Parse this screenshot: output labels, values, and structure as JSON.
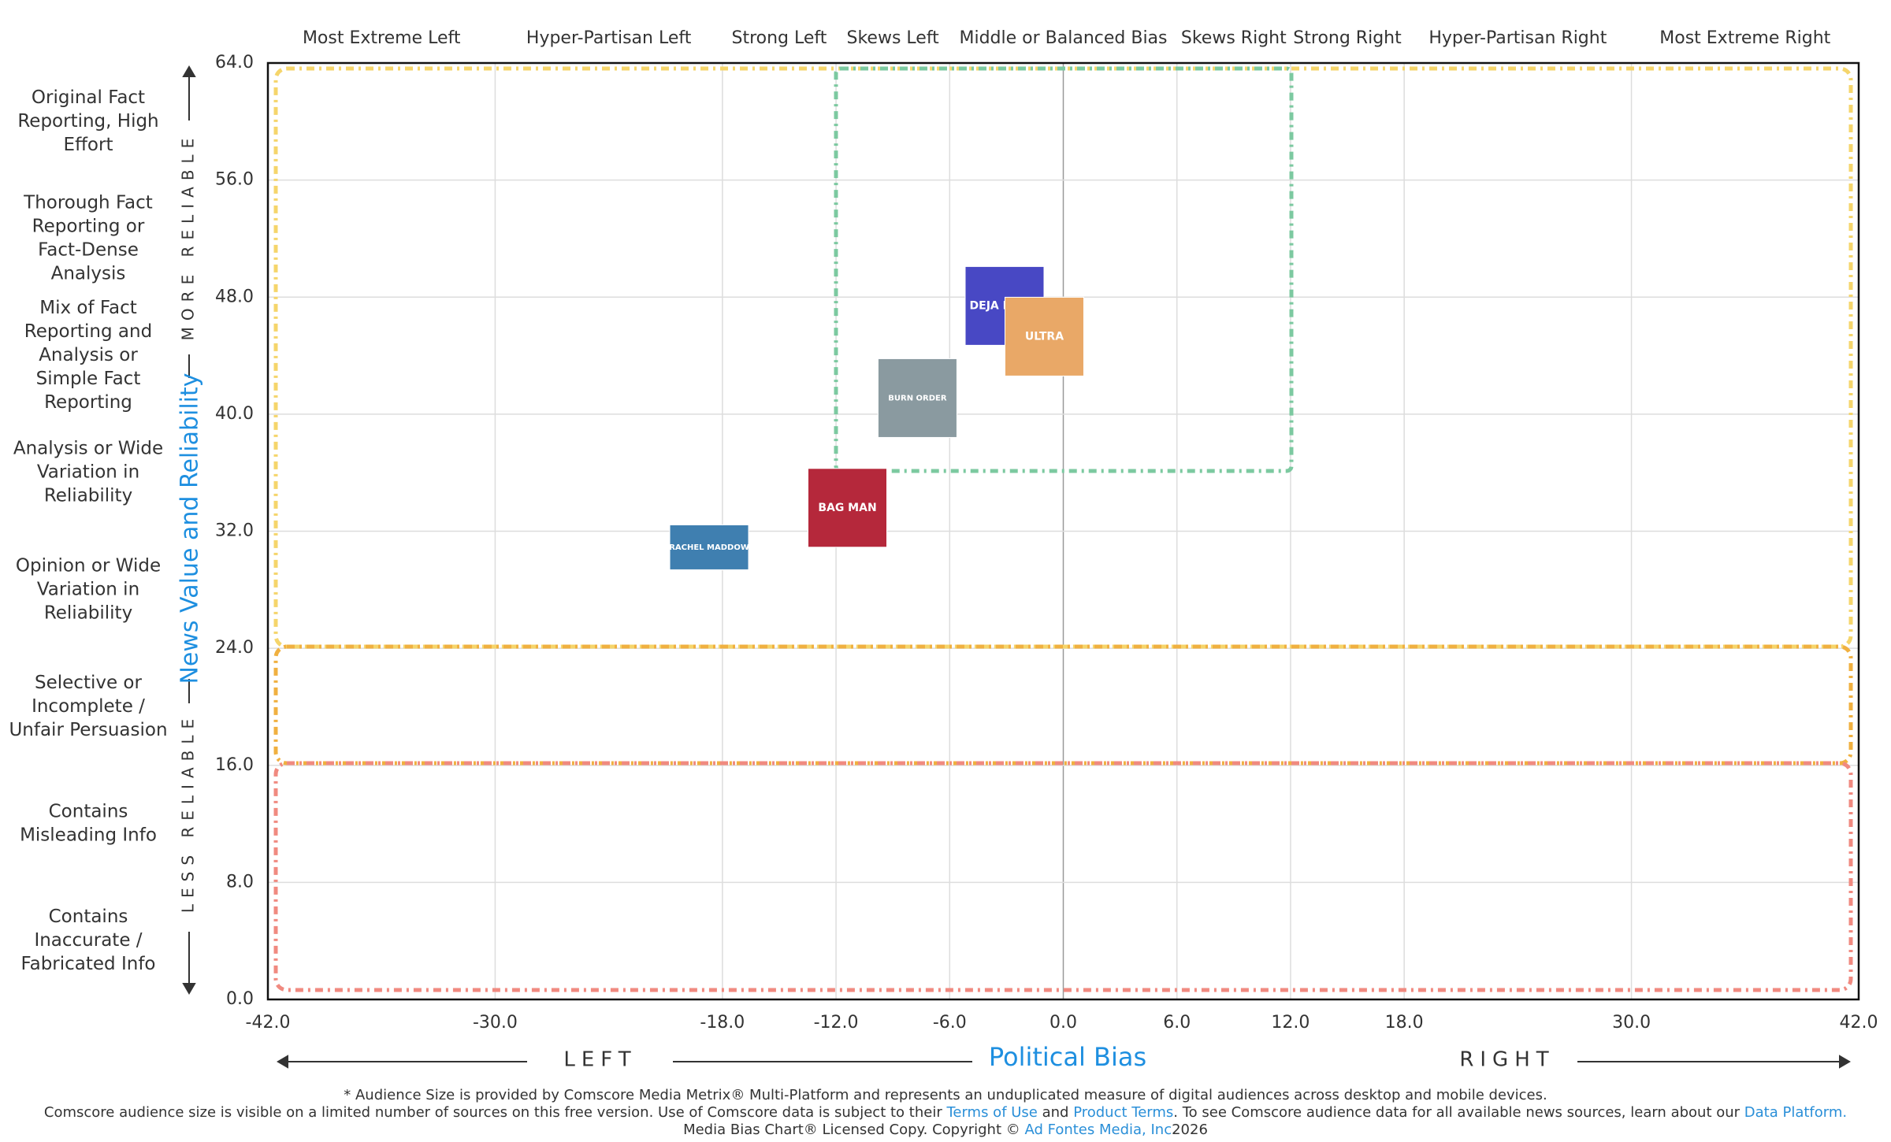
{
  "chart_data": {
    "type": "scatter",
    "x_label": "Political Bias",
    "y_label": "News Value and Reliability",
    "xlim": [
      -42,
      42
    ],
    "ylim": [
      0,
      64
    ],
    "xticks": [
      {
        "value": -42,
        "label": "-42.0"
      },
      {
        "value": -30,
        "label": "-30.0"
      },
      {
        "value": -18,
        "label": "-18.0"
      },
      {
        "value": -12,
        "label": "-12.0"
      },
      {
        "value": -6,
        "label": "-6.0"
      },
      {
        "value": 0,
        "label": "0.0"
      },
      {
        "value": 6,
        "label": "6.0"
      },
      {
        "value": 12,
        "label": "12.0"
      },
      {
        "value": 18,
        "label": "18.0"
      },
      {
        "value": 30,
        "label": "30.0"
      },
      {
        "value": 42,
        "label": "42.0"
      }
    ],
    "yticks": [
      {
        "value": 0,
        "label": "0.0"
      },
      {
        "value": 8,
        "label": "8.0"
      },
      {
        "value": 16,
        "label": "16.0"
      },
      {
        "value": 24,
        "label": "24.0"
      },
      {
        "value": 32,
        "label": "32.0"
      },
      {
        "value": 40,
        "label": "40.0"
      },
      {
        "value": 48,
        "label": "48.0"
      },
      {
        "value": 56,
        "label": "56.0"
      },
      {
        "value": 64,
        "label": "64.0"
      }
    ],
    "grid": true,
    "top_labels": [
      "Most Extreme Left",
      "Hyper-Partisan Left",
      "Strong Left",
      "Skews Left",
      "Middle or Balanced Bias",
      "Skews Right",
      "Strong Right",
      "Hyper-Partisan Right",
      "Most Extreme Right"
    ],
    "row_labels": [
      [
        "Original Fact",
        "Reporting, High",
        "Effort"
      ],
      [
        "Thorough Fact",
        "Reporting or",
        "Fact-Dense",
        "Analysis"
      ],
      [
        "Mix of Fact",
        "Reporting and",
        "Analysis or",
        "Simple Fact",
        "Reporting"
      ],
      [
        "Analysis or Wide",
        "Variation in",
        "Reliability"
      ],
      [
        "Opinion or Wide",
        "Variation in",
        "Reliability"
      ],
      [
        "Selective or",
        "Incomplete /",
        "Unfair Persuasion"
      ],
      [
        "Contains",
        "Misleading Info"
      ],
      [
        "Contains",
        "Inaccurate /",
        "Fabricated Info"
      ]
    ],
    "reliability_labels": [
      "MORE RELIABLE",
      "LESS RELIABLE"
    ],
    "direction_labels": [
      "LEFT",
      "RIGHT"
    ],
    "x": [
      -18.7,
      -11.4,
      -7.7,
      -3.1,
      -1.0
    ],
    "values": [
      30.9,
      33.6,
      41.1,
      47.4,
      45.3
    ],
    "point_labels": [
      "RACHEL MADDOW",
      "BAG MAN",
      "BURN ORDER",
      "DEJA NEWS",
      "ULTRA"
    ],
    "colors": [
      "#3f7fb0",
      "#b5283b",
      "#8a9aa0",
      "#4848c4",
      "#e9a867"
    ]
  },
  "footer": {
    "line1": "* Audience Size is provided by Comscore Media Metrix® Multi-Platform and represents an unduplicated measure of digital audiences across desktop and mobile devices.",
    "line2": [
      "Comscore audience size is visible on a limited number of sources on this free version. Use of Comscore data is subject to their ",
      "Terms of Use",
      " and ",
      "Product Terms",
      ". To see Comscore audience data for all available news sources, learn about our ",
      "Data Platform."
    ],
    "line3": [
      "Media Bias Chart® Licensed Copy. Copyright © ",
      "Ad Fontes Media, Inc",
      "2026"
    ]
  }
}
